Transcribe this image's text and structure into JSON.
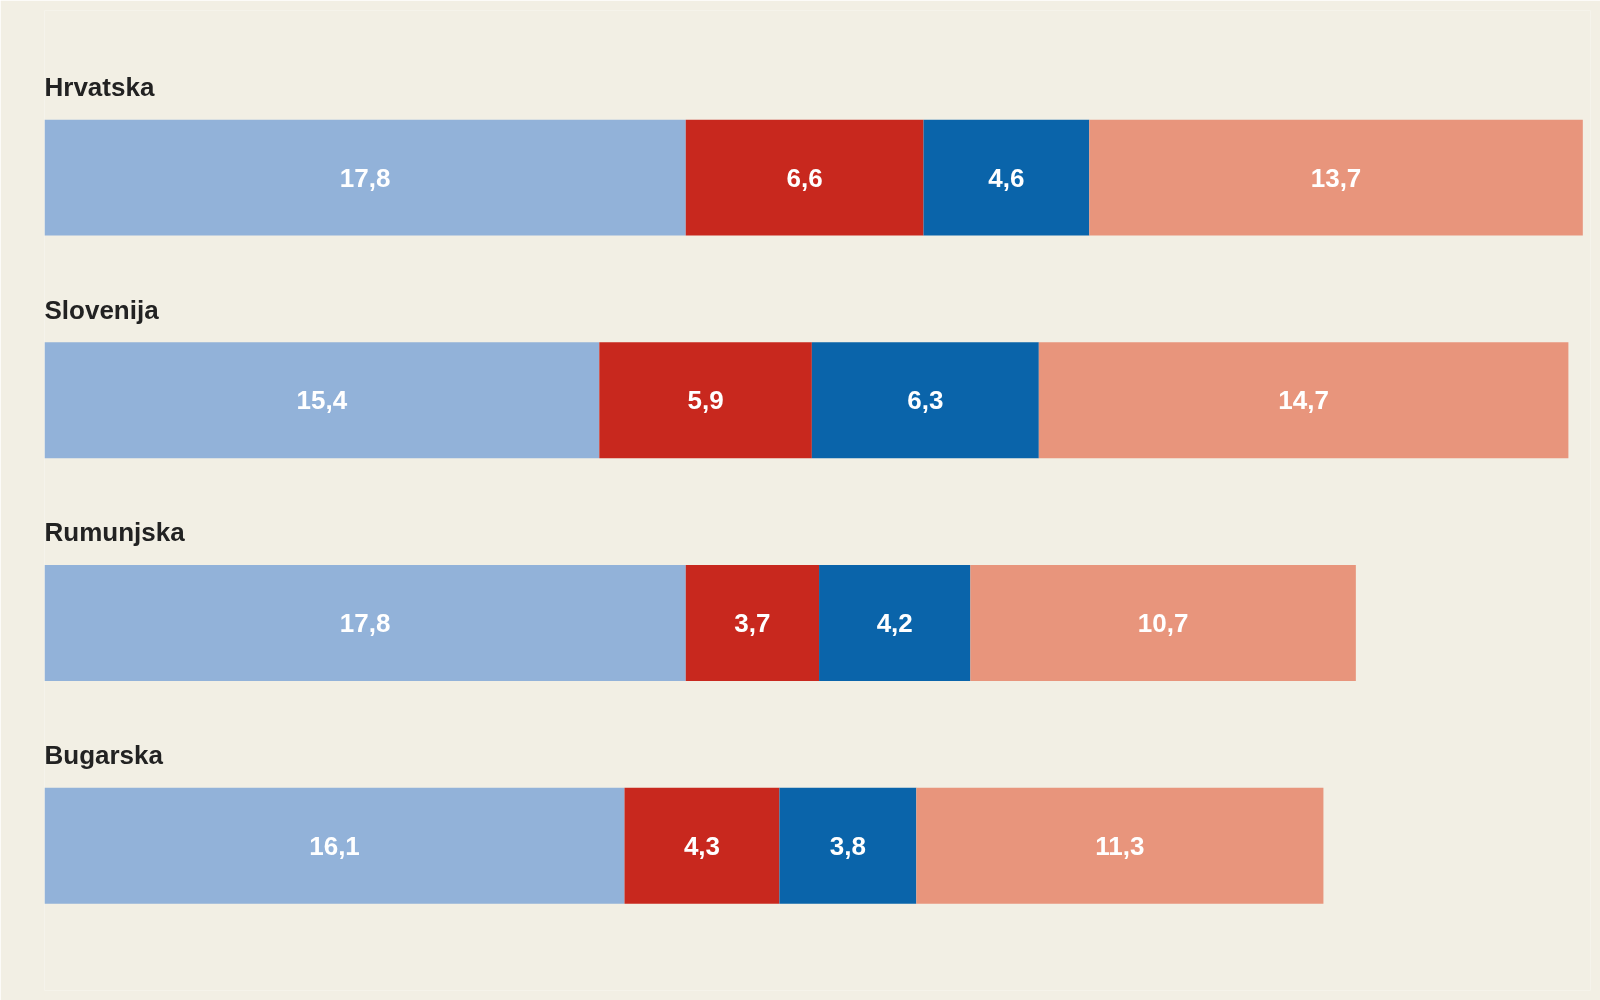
{
  "chart_data": {
    "type": "bar",
    "orientation": "horizontal",
    "stacked": true,
    "categories": [
      "Hrvatska",
      "Slovenija",
      "Rumunjska",
      "Bugarska"
    ],
    "series": [
      {
        "color": "#92b2d9",
        "values": [
          17.8,
          15.4,
          17.8,
          16.1
        ],
        "value_labels": [
          "17,8",
          "15,4",
          "17,8",
          "16,1"
        ]
      },
      {
        "color": "#c8281e",
        "values": [
          6.6,
          5.9,
          3.7,
          4.3
        ],
        "value_labels": [
          "6,6",
          "5,9",
          "3,7",
          "4,3"
        ]
      },
      {
        "color": "#0a64aa",
        "values": [
          4.6,
          6.3,
          4.2,
          3.8
        ],
        "value_labels": [
          "4,6",
          "6,3",
          "4,2",
          "3,8"
        ]
      },
      {
        "color": "#e8957c",
        "values": [
          13.7,
          14.7,
          10.7,
          11.3
        ],
        "value_labels": [
          "13,7",
          "14,7",
          "10,7",
          "11,3"
        ]
      }
    ]
  }
}
